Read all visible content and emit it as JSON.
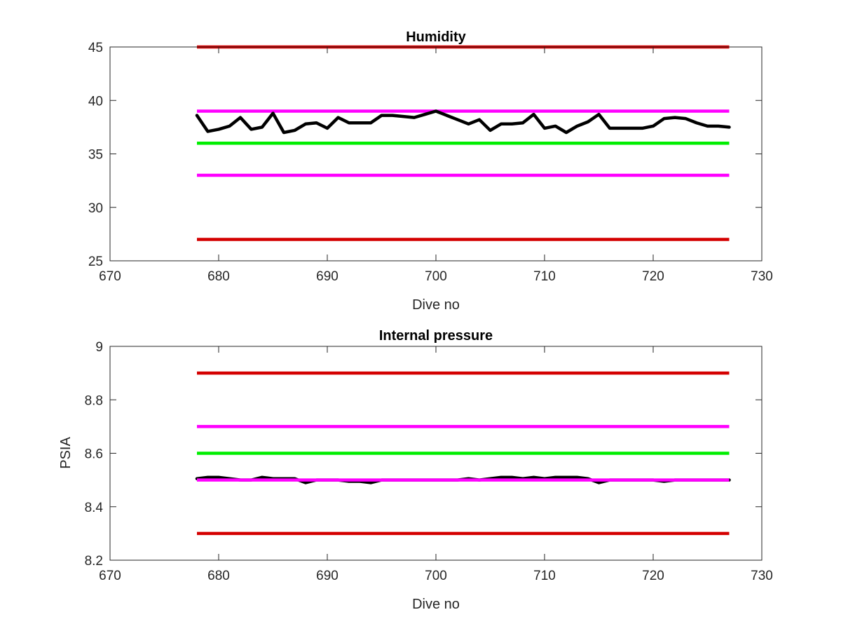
{
  "chart_data": [
    {
      "type": "line",
      "title": "Humidity",
      "xlabel": "Dive no",
      "ylabel": "",
      "xlim": [
        670,
        730
      ],
      "ylim": [
        25,
        45
      ],
      "xticks": [
        "670",
        "680",
        "690",
        "700",
        "710",
        "720",
        "730"
      ],
      "yticks": [
        "25",
        "30",
        "35",
        "40",
        "45"
      ],
      "reference_lines": [
        {
          "y": 45,
          "x": [
            678,
            727
          ],
          "color": "#d40000"
        },
        {
          "y": 39,
          "x": [
            678,
            727
          ],
          "color": "#ff00ff"
        },
        {
          "y": 36,
          "x": [
            678,
            727
          ],
          "color": "#00ee00"
        },
        {
          "y": 33,
          "x": [
            678,
            727
          ],
          "color": "#ff00ff"
        },
        {
          "y": 27,
          "x": [
            678,
            727
          ],
          "color": "#d40000"
        }
      ],
      "series": [
        {
          "color": "#000000",
          "x": [
            678,
            679,
            680,
            681,
            682,
            683,
            684,
            685,
            686,
            687,
            688,
            689,
            690,
            691,
            692,
            693,
            694,
            695,
            696,
            697,
            698,
            699,
            700,
            701,
            702,
            703,
            704,
            705,
            706,
            707,
            708,
            709,
            710,
            711,
            712,
            713,
            714,
            715,
            716,
            717,
            718,
            719,
            720,
            721,
            722,
            723,
            724,
            725,
            726,
            727
          ],
          "values": [
            38.6,
            37.1,
            37.3,
            37.6,
            38.4,
            37.3,
            37.5,
            38.8,
            37.0,
            37.2,
            37.8,
            37.9,
            37.4,
            38.4,
            37.9,
            37.9,
            37.9,
            38.6,
            38.6,
            38.5,
            38.4,
            38.7,
            39.0,
            38.6,
            38.2,
            37.8,
            38.2,
            37.2,
            37.8,
            37.8,
            37.9,
            38.7,
            37.4,
            37.6,
            37.0,
            37.6,
            38.0,
            38.7,
            37.4,
            37.4,
            37.4,
            37.4,
            37.6,
            38.3,
            38.4,
            38.3,
            37.9,
            37.6,
            37.6,
            37.5
          ]
        }
      ]
    },
    {
      "type": "line",
      "title": "Internal pressure",
      "xlabel": "Dive no",
      "ylabel": "PSIA",
      "xlim": [
        670,
        730
      ],
      "ylim": [
        8.2,
        9.0
      ],
      "xticks": [
        "670",
        "680",
        "690",
        "700",
        "710",
        "720",
        "730"
      ],
      "yticks": [
        "8.2",
        "8.4",
        "8.6",
        "8.8",
        "9"
      ],
      "reference_lines": [
        {
          "y": 8.9,
          "x": [
            678,
            727
          ],
          "color": "#d40000"
        },
        {
          "y": 8.7,
          "x": [
            678,
            727
          ],
          "color": "#ff00ff"
        },
        {
          "y": 8.6,
          "x": [
            678,
            727
          ],
          "color": "#00ee00"
        },
        {
          "y": 8.3,
          "x": [
            678,
            727
          ],
          "color": "#d40000"
        }
      ],
      "series": [
        {
          "color": "#000000",
          "x": [
            678,
            679,
            680,
            681,
            682,
            683,
            684,
            685,
            686,
            687,
            688,
            689,
            690,
            691,
            692,
            693,
            694,
            695,
            696,
            697,
            698,
            699,
            700,
            701,
            702,
            703,
            704,
            705,
            706,
            707,
            708,
            709,
            710,
            711,
            712,
            713,
            714,
            715,
            716,
            717,
            718,
            719,
            720,
            721,
            722,
            723,
            724,
            725,
            726,
            727
          ],
          "values": [
            8.505,
            8.51,
            8.51,
            8.505,
            8.5,
            8.5,
            8.51,
            8.505,
            8.505,
            8.505,
            8.49,
            8.5,
            8.5,
            8.5,
            8.495,
            8.495,
            8.49,
            8.5,
            8.5,
            8.5,
            8.5,
            8.5,
            8.5,
            8.5,
            8.5,
            8.505,
            8.5,
            8.505,
            8.51,
            8.51,
            8.505,
            8.51,
            8.505,
            8.51,
            8.51,
            8.51,
            8.505,
            8.49,
            8.5,
            8.5,
            8.5,
            8.5,
            8.5,
            8.495,
            8.5,
            8.5,
            8.5,
            8.5,
            8.5,
            8.5
          ]
        }
      ],
      "overlay_reference_lines": [
        {
          "y": 8.5,
          "x": [
            678,
            727
          ],
          "color": "#ff00ff"
        }
      ]
    }
  ]
}
